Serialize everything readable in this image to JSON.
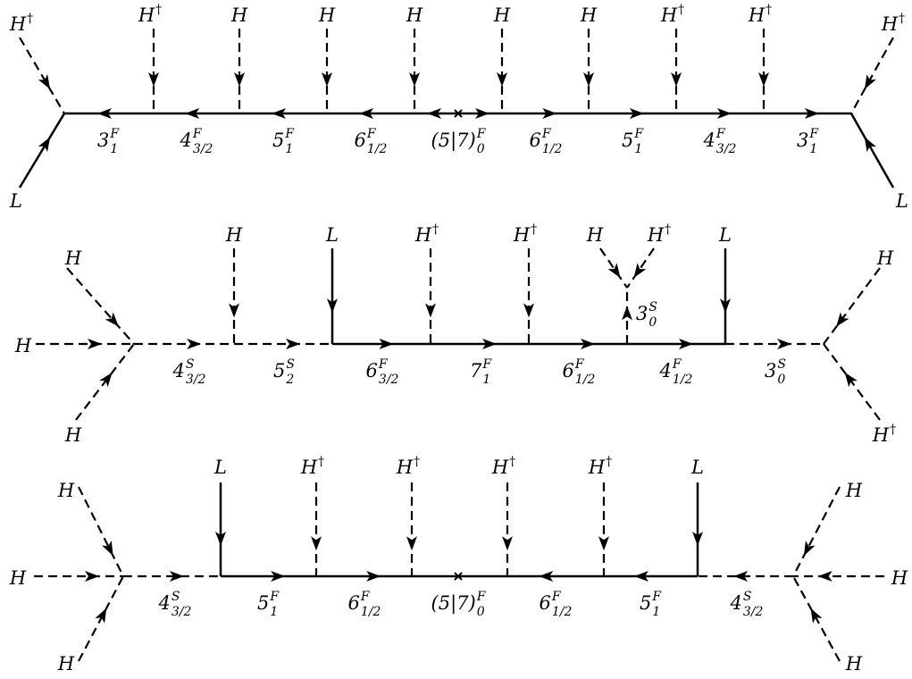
{
  "diagrams": [
    {
      "external_legs": [
        {
          "label": "H",
          "sup": "†"
        },
        {
          "label": "L",
          "sup": ""
        },
        {
          "label": "H",
          "sup": "†"
        },
        {
          "label": "H",
          "sup": ""
        },
        {
          "label": "H",
          "sup": ""
        },
        {
          "label": "H",
          "sup": ""
        },
        {
          "label": "H",
          "sup": ""
        },
        {
          "label": "H",
          "sup": ""
        },
        {
          "label": "H",
          "sup": "†"
        },
        {
          "label": "H",
          "sup": "†"
        },
        {
          "label": "L",
          "sup": ""
        }
      ],
      "propagators": [
        {
          "main": "3",
          "sup": "F",
          "sub": "1"
        },
        {
          "main": "4",
          "sup": "F",
          "sub": "3/2"
        },
        {
          "main": "5",
          "sup": "F",
          "sub": "1"
        },
        {
          "main": "6",
          "sup": "F",
          "sub": "1/2"
        },
        {
          "main": "(5|7)",
          "sup": "F",
          "sub": "0"
        },
        {
          "main": "6",
          "sup": "F",
          "sub": "1/2"
        },
        {
          "main": "5",
          "sup": "F",
          "sub": "1"
        },
        {
          "main": "4",
          "sup": "F",
          "sub": "3/2"
        },
        {
          "main": "3",
          "sup": "F",
          "sub": "1"
        }
      ]
    },
    {
      "external_legs": [
        {
          "label": "H",
          "sup": ""
        },
        {
          "label": "H",
          "sup": ""
        },
        {
          "label": "H",
          "sup": ""
        },
        {
          "label": "H",
          "sup": ""
        },
        {
          "label": "L",
          "sup": ""
        },
        {
          "label": "H",
          "sup": "†"
        },
        {
          "label": "H",
          "sup": "†"
        },
        {
          "label": "H",
          "sup": ""
        },
        {
          "label": "H",
          "sup": "†"
        },
        {
          "label": "L",
          "sup": ""
        },
        {
          "label": "H",
          "sup": ""
        },
        {
          "label": "H",
          "sup": "†"
        }
      ],
      "propagators": [
        {
          "main": "4",
          "sup": "S",
          "sub": "3/2"
        },
        {
          "main": "5",
          "sup": "S",
          "sub": "2"
        },
        {
          "main": "6",
          "sup": "F",
          "sub": "3/2"
        },
        {
          "main": "7",
          "sup": "F",
          "sub": "1"
        },
        {
          "main": "6",
          "sup": "F",
          "sub": "1/2"
        },
        {
          "main": "3",
          "sup": "S",
          "sub": "0"
        },
        {
          "main": "4",
          "sup": "F",
          "sub": "1/2"
        },
        {
          "main": "3",
          "sup": "S",
          "sub": "0"
        }
      ]
    },
    {
      "external_legs": [
        {
          "label": "H",
          "sup": ""
        },
        {
          "label": "H",
          "sup": ""
        },
        {
          "label": "H",
          "sup": ""
        },
        {
          "label": "L",
          "sup": ""
        },
        {
          "label": "H",
          "sup": "†"
        },
        {
          "label": "H",
          "sup": "†"
        },
        {
          "label": "H",
          "sup": "†"
        },
        {
          "label": "H",
          "sup": "†"
        },
        {
          "label": "L",
          "sup": ""
        },
        {
          "label": "H",
          "sup": ""
        },
        {
          "label": "H",
          "sup": ""
        },
        {
          "label": "H",
          "sup": ""
        }
      ],
      "propagators": [
        {
          "main": "4",
          "sup": "S",
          "sub": "3/2"
        },
        {
          "main": "5",
          "sup": "F",
          "sub": "1"
        },
        {
          "main": "6",
          "sup": "F",
          "sub": "1/2"
        },
        {
          "main": "(5|7)",
          "sup": "F",
          "sub": "0"
        },
        {
          "main": "6",
          "sup": "F",
          "sub": "1/2"
        },
        {
          "main": "5",
          "sup": "F",
          "sub": "1"
        },
        {
          "main": "4",
          "sup": "S",
          "sub": "3/2"
        }
      ]
    }
  ]
}
